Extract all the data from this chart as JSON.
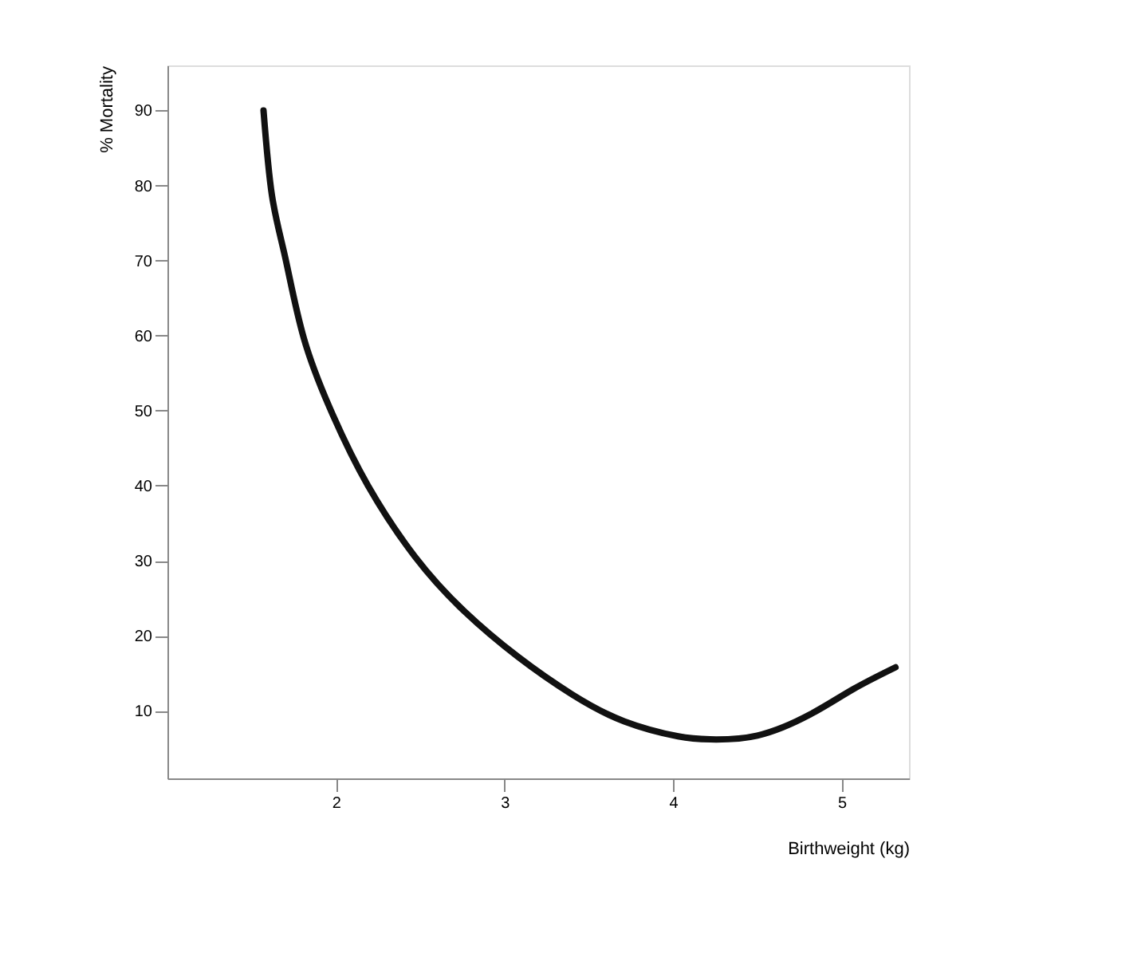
{
  "chart_data": {
    "type": "line",
    "xlabel": "Birthweight (kg)",
    "ylabel": "% Mortality",
    "x": [
      1.57,
      1.62,
      1.7,
      1.81,
      1.98,
      2.19,
      2.47,
      2.76,
      3.08,
      3.4,
      3.71,
      4.03,
      4.22,
      4.5,
      4.82,
      5.07,
      5.32
    ],
    "series": [
      {
        "color": "#111111",
        "values": [
          90,
          78.7,
          70.3,
          59.6,
          49.5,
          40,
          30.5,
          23.3,
          17.2,
          12.2,
          8.6,
          6.6,
          6.2,
          6.7,
          9.6,
          12.9,
          15.8
        ]
      }
    ],
    "xlim": [
      1,
      5.4
    ],
    "xticks": [
      2,
      3,
      4,
      5
    ],
    "ylim": [
      1,
      96
    ],
    "yticks": [
      10,
      20,
      30,
      40,
      50,
      60,
      70,
      80,
      90
    ],
    "grid": false,
    "marker": "none",
    "line_style": "solid"
  }
}
